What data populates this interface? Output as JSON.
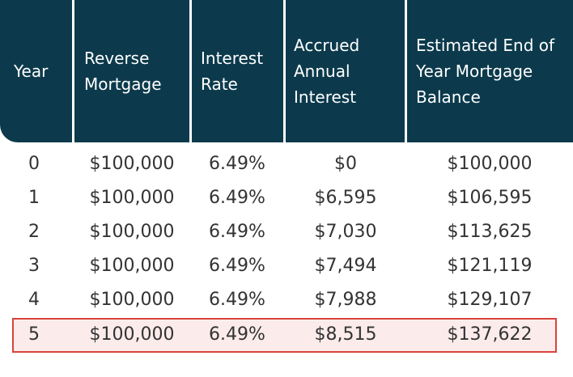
{
  "table": {
    "headers": [
      "Year",
      "Reverse\nMortgage",
      "Interest\nRate",
      "Accrued\nAnnual\nInterest",
      "Estimated End of\nYear Mortgage\nBalance"
    ],
    "rows": [
      [
        "0",
        "$100,000",
        "6.49%",
        "$0",
        "$100,000"
      ],
      [
        "1",
        "$100,000",
        "6.49%",
        "$6,595",
        "$106,595"
      ],
      [
        "2",
        "$100,000",
        "6.49%",
        "$7,030",
        "$113,625"
      ],
      [
        "3",
        "$100,000",
        "6.49%",
        "$7,494",
        "$121,119"
      ],
      [
        "4",
        "$100,000",
        "6.49%",
        "$7,988",
        "$129,107"
      ],
      [
        "5",
        "$100,000",
        "6.49%",
        "$8,515",
        "$137,622"
      ]
    ],
    "highlighted_row": 5
  },
  "colors": {
    "header_bg": "#0c3a4c",
    "header_text": "#ffffff",
    "body_text": "#333333",
    "highlight_border": "#d8443c",
    "highlight_bg": "#fcebeb"
  }
}
